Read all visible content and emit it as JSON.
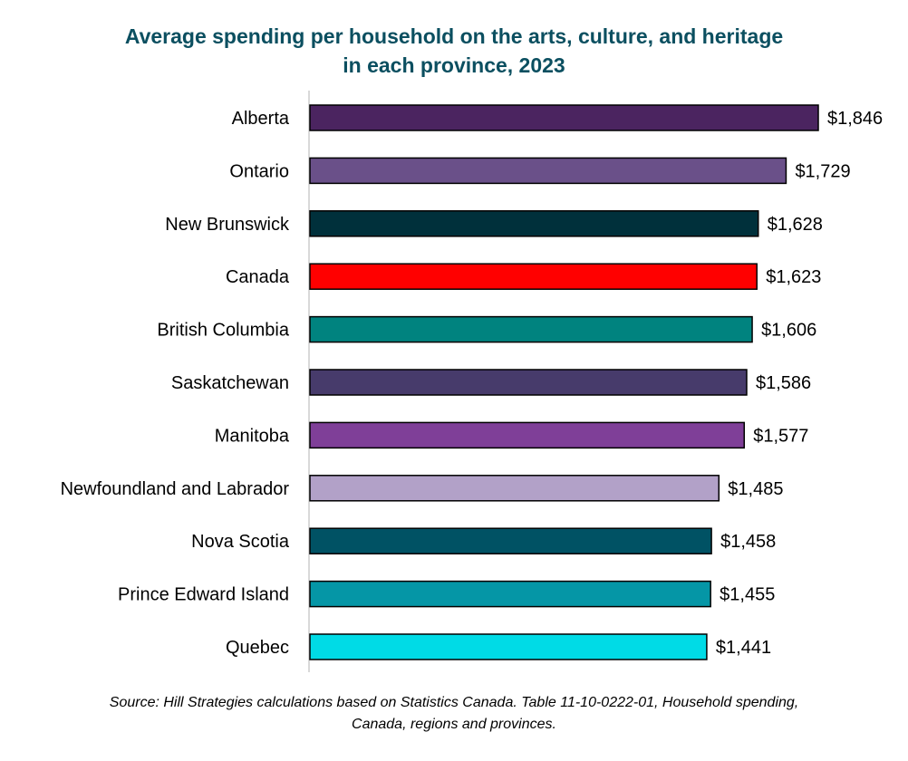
{
  "chart_data": {
    "type": "bar",
    "orientation": "horizontal",
    "title_line1": "Average spending per household on the arts, culture, and heritage",
    "title_line2": "in each province, 2023",
    "xlabel": "",
    "ylabel": "",
    "grid": false,
    "legend": "none",
    "xlim": [
      0,
      1846
    ],
    "categories": [
      "Alberta",
      "Ontario",
      "New Brunswick",
      "Canada",
      "British Columbia",
      "Saskatchewan",
      "Manitoba",
      "Newfoundland and Labrador",
      "Nova Scotia",
      "Prince Edward Island",
      "Quebec"
    ],
    "values": [
      1846,
      1729,
      1628,
      1623,
      1606,
      1586,
      1577,
      1485,
      1458,
      1455,
      1441
    ],
    "value_labels": [
      "$1,846",
      "$1,729",
      "$1,628",
      "$1,623",
      "$1,606",
      "$1,586",
      "$1,577",
      "$1,485",
      "$1,458",
      "$1,455",
      "$1,441"
    ],
    "colors": [
      "#4b2460",
      "#6a5089",
      "#00303b",
      "#ff0000",
      "#00837f",
      "#473b6b",
      "#7f3f98",
      "#b2a1c8",
      "#005264",
      "#0596a6",
      "#00dbe6"
    ],
    "source_line1": "Source: Hill Strategies calculations based on Statistics Canada. Table 11-10-0222-01, Household spending,",
    "source_line2": "Canada, regions and provinces."
  }
}
